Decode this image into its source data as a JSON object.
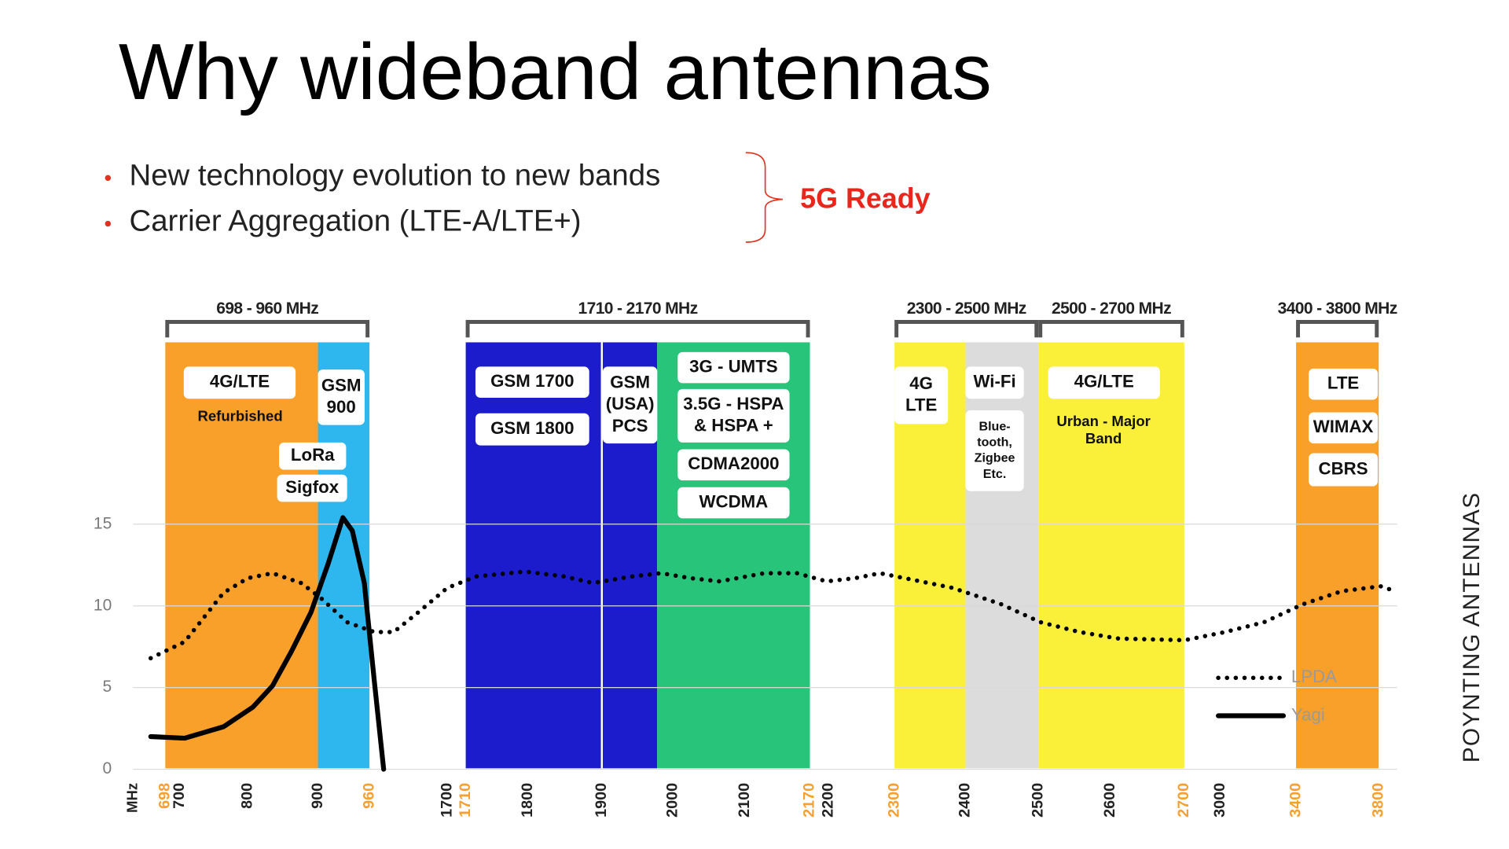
{
  "title": "Why wideband antennas",
  "bullets": [
    "New technology evolution to new bands",
    "Carrier Aggregation (LTE-A/LTE+)"
  ],
  "callout": "5G Ready",
  "side_label": "POYNTING ANTENNAS",
  "chart_data": {
    "type": "line",
    "xlabel": "MHz",
    "xticks": [
      698,
      700,
      800,
      900,
      960,
      1700,
      1710,
      1800,
      1900,
      2000,
      2100,
      2170,
      2200,
      2300,
      2400,
      2500,
      2600,
      2700,
      3000,
      3400,
      3800
    ],
    "xtick_colors": [
      "#f7a030",
      "#222222",
      "#222222",
      "#222222",
      "#f7a030",
      "#222222",
      "#f7a030",
      "#222222",
      "#222222",
      "#222222",
      "#222222",
      "#f7a030",
      "#222222",
      "#f7a030",
      "#222222",
      "#222222",
      "#222222",
      "#f7a030",
      "#222222",
      "#f7a030",
      "#f7a030"
    ],
    "ylim": [
      0,
      15
    ],
    "yticks": [
      0,
      5,
      10,
      15
    ],
    "grid": true,
    "legend": "lower right",
    "brackets": [
      {
        "label": "698 - 960 MHz",
        "from": 698,
        "to": 960
      },
      {
        "label": "1710 - 2170 MHz",
        "from": 1710,
        "to": 2170
      },
      {
        "label": "2300 - 2500 MHz",
        "from": 2300,
        "to": 2500
      },
      {
        "label": "2500 - 2700 MHz",
        "from": 2500,
        "to": 2700
      },
      {
        "label": "3400 - 3800 MHz",
        "from": 3400,
        "to": 3800
      }
    ],
    "bands": [
      {
        "from": 698,
        "to": 900,
        "color": "#f8a02a",
        "boxes": [
          [
            "4G/LTE"
          ],
          [
            "LoRa"
          ],
          [
            "Sigfox"
          ]
        ],
        "notes": [
          [
            "Refurbished"
          ]
        ]
      },
      {
        "from": 900,
        "to": 960,
        "color": "#2db7ee",
        "boxes": [
          [
            "GSM",
            "900"
          ]
        ],
        "notes": []
      },
      {
        "from": 1710,
        "to": 1900,
        "color": "#1c1ccc",
        "boxes": [
          [
            "GSM 1700"
          ],
          [
            "GSM 1800"
          ]
        ],
        "notes": []
      },
      {
        "from": 1900,
        "to": 1978,
        "color": "#1c1ccc",
        "boxes": [
          [
            "GSM",
            "(USA)",
            "PCS"
          ]
        ],
        "notes": []
      },
      {
        "from": 1978,
        "to": 2170,
        "color": "#27c47a",
        "boxes": [
          [
            "3G - UMTS"
          ],
          [
            "3.5G - HSPA",
            "& HSPA +"
          ],
          [
            "CDMA2000"
          ],
          [
            "WCDMA"
          ]
        ],
        "notes": []
      },
      {
        "from": 2300,
        "to": 2400,
        "color": "#faf03a",
        "boxes": [
          [
            "4G",
            "LTE"
          ]
        ],
        "notes": []
      },
      {
        "from": 2400,
        "to": 2500,
        "color": "#dcdcdc",
        "boxes": [
          [
            "Wi-Fi"
          ],
          [
            "Blue-",
            "tooth,",
            "Zigbee",
            "Etc."
          ]
        ],
        "notes": []
      },
      {
        "from": 2500,
        "to": 2700,
        "color": "#faf03a",
        "boxes": [
          [
            "4G/LTE"
          ]
        ],
        "notes": [
          [
            "Urban - Major",
            "Band"
          ]
        ]
      },
      {
        "from": 3400,
        "to": 3800,
        "color": "#f8a02a",
        "boxes": [
          [
            "LTE"
          ],
          [
            "WIMAX"
          ],
          [
            "CBRS"
          ]
        ],
        "notes": []
      }
    ],
    "series": [
      {
        "name": "LPDA",
        "color": "#000000",
        "style": "dotted",
        "x": [
          696,
          707,
          764,
          800,
          835,
          876,
          903,
          934,
          1006,
          1191,
          1423,
          1700,
          1725,
          1796,
          1849,
          1888,
          1942,
          1984,
          2024,
          2065,
          2121,
          2156,
          2197,
          2241,
          2278,
          2314,
          2382,
          2449,
          2503,
          2557,
          2611,
          2705,
          3026,
          3231,
          3433,
          3621,
          3809,
          3880
        ],
        "values": [
          6.8,
          7.8,
          10.8,
          11.7,
          12,
          11.4,
          10.5,
          9,
          8.4,
          8.4,
          9.6,
          11.1,
          11.8,
          12.1,
          11.8,
          11.4,
          11.8,
          12,
          11.7,
          11.5,
          12,
          12,
          11.5,
          11.7,
          12,
          11.7,
          11.1,
          10.1,
          9,
          8.4,
          8,
          7.9,
          8.4,
          9,
          10.1,
          10.9,
          11.2,
          10.9
        ]
      },
      {
        "name": "Yagi",
        "color": "#000000",
        "style": "solid",
        "x": [
          696,
          707,
          764,
          807,
          835,
          862,
          890,
          912,
          929,
          940,
          954,
          1006,
          1095
        ],
        "values": [
          2,
          1.9,
          2.6,
          3.8,
          5.1,
          7.2,
          9.6,
          12.6,
          15.4,
          14.6,
          11.4,
          5.4,
          0
        ]
      }
    ]
  }
}
